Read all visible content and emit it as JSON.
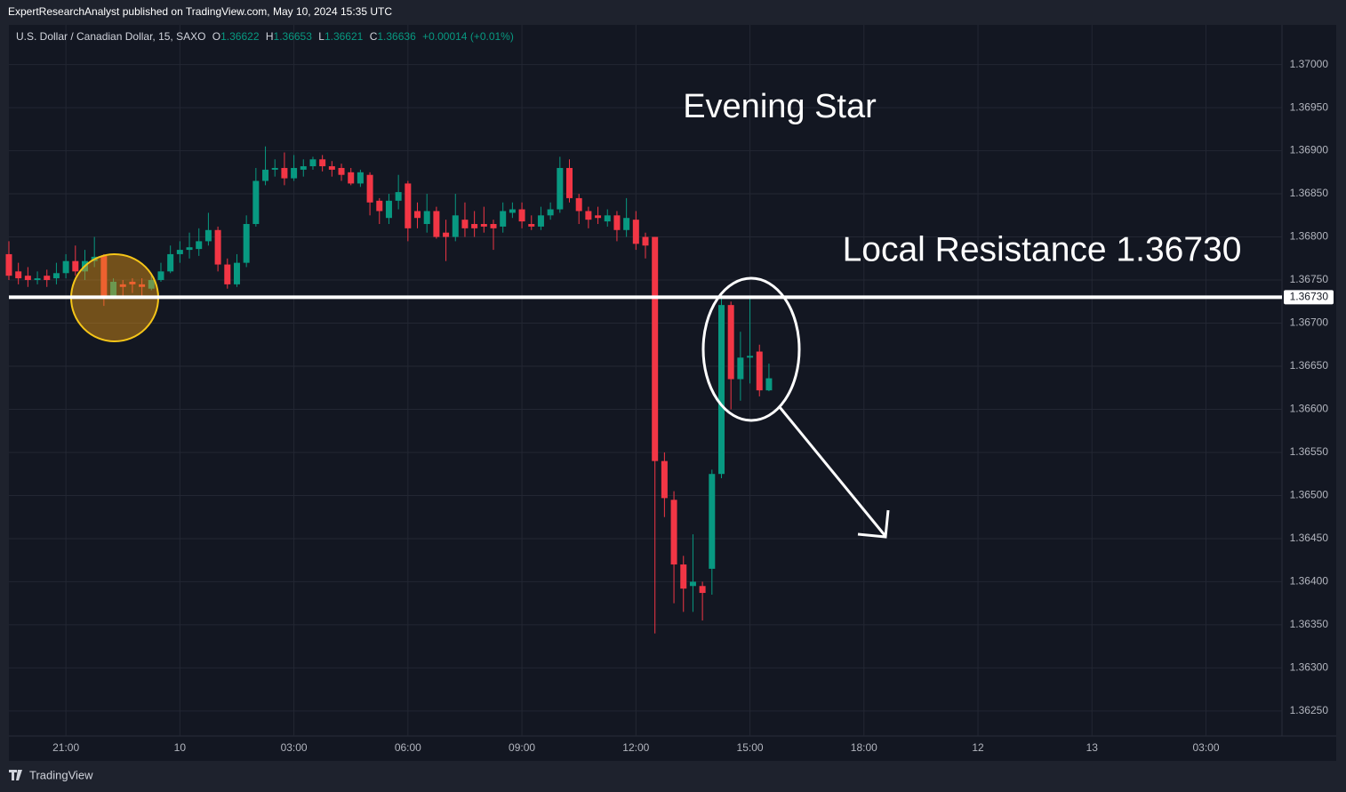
{
  "header": {
    "publisher": "ExpertResearchAnalyst published on TradingView.com, May 10, 2024 15:35 UTC",
    "symbol": "U.S. Dollar / Canadian Dollar, 15, SAXO",
    "o_label": "O",
    "o": "1.36622",
    "h_label": "H",
    "h": "1.36653",
    "l_label": "L",
    "l": "1.36621",
    "c_label": "C",
    "c": "1.36636",
    "change": "+0.00014 (+0.01%)"
  },
  "footer": {
    "brand": "TradingView"
  },
  "chart_data": {
    "type": "candlestick",
    "up_color": "#089981",
    "down_color": "#f23645",
    "x": [
      -1.5,
      -1.25,
      -1,
      -0.75,
      -0.5,
      -0.25,
      0,
      0.25,
      0.5,
      0.75,
      1,
      1.25,
      1.5,
      1.75,
      2,
      2.25,
      2.5,
      2.75,
      3,
      3.25,
      3.5,
      3.75,
      4,
      4.25,
      4.5,
      4.75,
      5,
      5.25,
      5.5,
      5.75,
      6,
      6.25,
      6.5,
      6.75,
      7,
      7.25,
      7.5,
      7.75,
      8,
      8.25,
      8.5,
      8.75,
      9,
      9.25,
      9.5,
      9.75,
      10,
      10.25,
      10.5,
      10.75,
      11,
      11.25,
      11.5,
      11.75,
      12,
      12.25,
      12.5,
      12.75,
      13,
      13.25,
      13.5,
      13.75,
      14,
      14.25,
      14.5,
      14.75,
      15,
      15.25,
      15.5,
      15.75,
      16,
      16.25,
      16.5,
      16.75,
      17,
      17.25,
      17.5,
      17.75,
      18,
      18.25,
      18.5
    ],
    "open": [
      1.3678,
      1.3676,
      1.36755,
      1.3675,
      1.36755,
      1.36752,
      1.36758,
      1.36772,
      1.3676,
      1.36772,
      1.36778,
      1.3673,
      1.36745,
      1.36748,
      1.36745,
      1.3674,
      1.3675,
      1.3676,
      1.3678,
      1.36785,
      1.36786,
      1.36795,
      1.36808,
      1.36768,
      1.36745,
      1.3677,
      1.36815,
      1.36865,
      1.36878,
      1.3688,
      1.36868,
      1.36878,
      1.36882,
      1.3689,
      1.36882,
      1.3688,
      1.36875,
      1.36862,
      1.36872,
      1.36842,
      1.36822,
      1.36842,
      1.36862,
      1.3683,
      1.36815,
      1.3683,
      1.36805,
      1.368,
      1.3682,
      1.36815,
      1.36815,
      1.36815,
      1.36812,
      1.36828,
      1.36832,
      1.36815,
      1.36812,
      1.36825,
      1.36832,
      1.3688,
      1.36845,
      1.3683,
      1.36825,
      1.36818,
      1.36825,
      1.36808,
      1.3682,
      1.368,
      1.368,
      1.3654,
      1.36495,
      1.3642,
      1.36395,
      1.36395,
      1.36415,
      1.36525,
      1.36721,
      1.36635,
      1.3666,
      1.36667,
      1.36622
    ],
    "high": [
      1.36795,
      1.3677,
      1.36765,
      1.3676,
      1.36762,
      1.3677,
      1.3678,
      1.3679,
      1.36785,
      1.368,
      1.3678,
      1.36752,
      1.3675,
      1.36752,
      1.36752,
      1.36755,
      1.3677,
      1.3679,
      1.36795,
      1.36805,
      1.3681,
      1.36828,
      1.36812,
      1.36775,
      1.3678,
      1.36825,
      1.3688,
      1.36905,
      1.3689,
      1.36898,
      1.36895,
      1.3689,
      1.36893,
      1.36895,
      1.36888,
      1.36885,
      1.3688,
      1.36878,
      1.36875,
      1.36845,
      1.3685,
      1.36872,
      1.36865,
      1.3684,
      1.3685,
      1.36835,
      1.3682,
      1.3685,
      1.3684,
      1.3683,
      1.36835,
      1.3682,
      1.3684,
      1.3684,
      1.3684,
      1.36825,
      1.36835,
      1.3684,
      1.36893,
      1.3689,
      1.3685,
      1.36835,
      1.36835,
      1.36832,
      1.3683,
      1.36845,
      1.3683,
      1.36805,
      1.368,
      1.3655,
      1.36505,
      1.3643,
      1.36455,
      1.364,
      1.3653,
      1.36735,
      1.36725,
      1.3669,
      1.36732,
      1.36675,
      1.36653
    ],
    "low": [
      1.3675,
      1.36745,
      1.36742,
      1.36745,
      1.36742,
      1.36745,
      1.36752,
      1.36755,
      1.3675,
      1.36765,
      1.3672,
      1.36728,
      1.36732,
      1.36735,
      1.36732,
      1.36738,
      1.36748,
      1.36758,
      1.3677,
      1.36775,
      1.36778,
      1.3679,
      1.3676,
      1.3674,
      1.36742,
      1.36765,
      1.36812,
      1.3686,
      1.3687,
      1.3686,
      1.36865,
      1.3687,
      1.36878,
      1.36876,
      1.3687,
      1.36865,
      1.3686,
      1.36858,
      1.36825,
      1.36815,
      1.36815,
      1.36832,
      1.36795,
      1.3681,
      1.36805,
      1.36798,
      1.36772,
      1.36795,
      1.368,
      1.368,
      1.36805,
      1.36785,
      1.36805,
      1.36822,
      1.3681,
      1.36808,
      1.36808,
      1.3682,
      1.36828,
      1.3684,
      1.36815,
      1.3681,
      1.36815,
      1.36812,
      1.36795,
      1.368,
      1.36785,
      1.36775,
      1.3634,
      1.36475,
      1.36375,
      1.36365,
      1.36365,
      1.36355,
      1.36385,
      1.3652,
      1.366,
      1.3661,
      1.3663,
      1.36615,
      1.36621
    ],
    "close": [
      1.36755,
      1.36752,
      1.3675,
      1.36752,
      1.3675,
      1.36758,
      1.36772,
      1.3676,
      1.36772,
      1.36777,
      1.3673,
      1.36748,
      1.36742,
      1.36745,
      1.36742,
      1.3675,
      1.3676,
      1.3678,
      1.36785,
      1.36788,
      1.36795,
      1.36808,
      1.36768,
      1.36745,
      1.3677,
      1.36815,
      1.36865,
      1.36878,
      1.3688,
      1.36868,
      1.3688,
      1.36882,
      1.3689,
      1.36882,
      1.36878,
      1.36872,
      1.36862,
      1.36875,
      1.3684,
      1.3683,
      1.36842,
      1.36852,
      1.3681,
      1.36822,
      1.3683,
      1.368,
      1.368,
      1.36825,
      1.3681,
      1.3681,
      1.36812,
      1.3681,
      1.3683,
      1.36832,
      1.36818,
      1.36812,
      1.36825,
      1.36832,
      1.3688,
      1.36845,
      1.3683,
      1.3682,
      1.36822,
      1.36825,
      1.36808,
      1.36822,
      1.36792,
      1.3679,
      1.3654,
      1.36497,
      1.3642,
      1.36392,
      1.364,
      1.36387,
      1.36525,
      1.36721,
      1.36635,
      1.3666,
      1.36662,
      1.36622,
      1.36636
    ],
    "xlim": [
      -1.5,
      32
    ],
    "xticks": [
      {
        "value": 0,
        "label": "21:00"
      },
      {
        "value": 3,
        "label": "10"
      },
      {
        "value": 6,
        "label": "03:00"
      },
      {
        "value": 9,
        "label": "06:00"
      },
      {
        "value": 12,
        "label": "09:00"
      },
      {
        "value": 15,
        "label": "12:00"
      },
      {
        "value": 18,
        "label": "15:00"
      },
      {
        "value": 21,
        "label": "18:00"
      },
      {
        "value": 24,
        "label": "12"
      },
      {
        "value": 27,
        "label": "13"
      },
      {
        "value": 30,
        "label": "03:00"
      }
    ],
    "ylim": [
      1.36221,
      1.37046
    ],
    "yticks": [
      {
        "value": 1.3625,
        "label": "1.36250"
      },
      {
        "value": 1.363,
        "label": "1.36300"
      },
      {
        "value": 1.3635,
        "label": "1.36350"
      },
      {
        "value": 1.364,
        "label": "1.36400"
      },
      {
        "value": 1.3645,
        "label": "1.36450"
      },
      {
        "value": 1.365,
        "label": "1.36500"
      },
      {
        "value": 1.3655,
        "label": "1.36550"
      },
      {
        "value": 1.366,
        "label": "1.36600"
      },
      {
        "value": 1.3665,
        "label": "1.36650"
      },
      {
        "value": 1.367,
        "label": "1.36700"
      },
      {
        "value": 1.3675,
        "label": "1.36750"
      },
      {
        "value": 1.368,
        "label": "1.36800"
      },
      {
        "value": 1.3685,
        "label": "1.36850"
      },
      {
        "value": 1.369,
        "label": "1.36900"
      },
      {
        "value": 1.3695,
        "label": "1.36950"
      },
      {
        "value": 1.37,
        "label": "1.37000"
      }
    ],
    "grid": true,
    "resistance": {
      "value": 1.3673,
      "value_label": "1.36730",
      "color": "#ffffff"
    },
    "annotations": [
      "Evening Star",
      "Local Resistance 1.36730"
    ]
  }
}
